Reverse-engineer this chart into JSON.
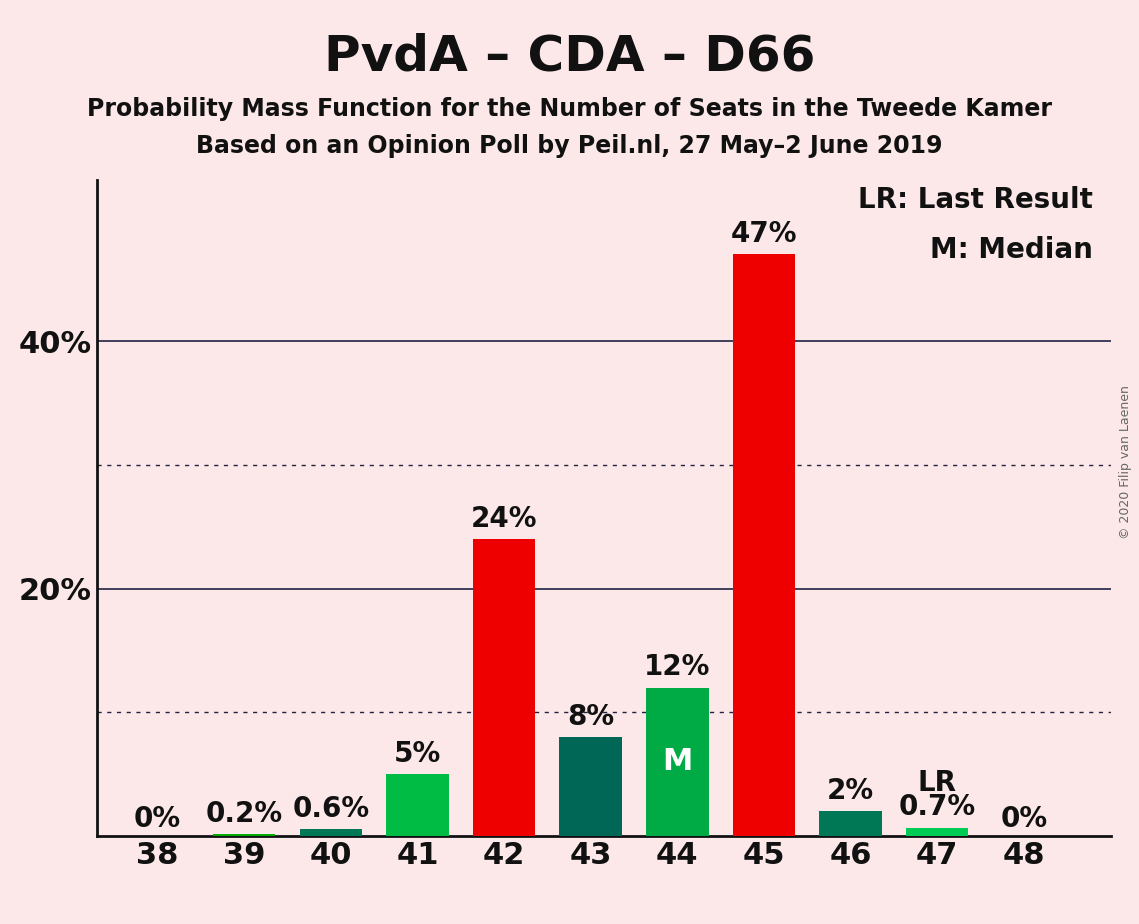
{
  "title": "PvdA – CDA – D66",
  "subtitle1": "Probability Mass Function for the Number of Seats in the Tweede Kamer",
  "subtitle2": "Based on an Opinion Poll by Peil.nl, 27 May–2 June 2019",
  "copyright": "© 2020 Filip van Laenen",
  "categories": [
    38,
    39,
    40,
    41,
    42,
    43,
    44,
    45,
    46,
    47,
    48
  ],
  "values": [
    0.0,
    0.2,
    0.6,
    5.0,
    24.0,
    8.0,
    12.0,
    47.0,
    2.0,
    0.7,
    0.0
  ],
  "labels": [
    "0%",
    "0.2%",
    "0.6%",
    "5%",
    "24%",
    "8%",
    "12%",
    "47%",
    "2%",
    "0.7%",
    "0%"
  ],
  "colors": [
    "#00aa00",
    "#00aa00",
    "#007755",
    "#00bb44",
    "#ee0000",
    "#006655",
    "#00aa44",
    "#ee0000",
    "#007755",
    "#00cc55",
    "#00aa00"
  ],
  "median_bar": 44,
  "lr_bar": 47,
  "median_label": "M",
  "lr_label": "LR",
  "background_color": "#fce8e8",
  "bar_width": 0.72,
  "ylim": [
    0,
    53
  ],
  "yticks": [
    0,
    20,
    40
  ],
  "ytick_labels": [
    "",
    "20%",
    "40%"
  ],
  "grid_solid": [
    20,
    40
  ],
  "grid_dotted": [
    10,
    30
  ],
  "legend_text1": "LR: Last Result",
  "legend_text2": "M: Median",
  "title_fontsize": 36,
  "subtitle_fontsize": 17,
  "label_fontsize": 20,
  "tick_fontsize": 22,
  "legend_fontsize": 20
}
